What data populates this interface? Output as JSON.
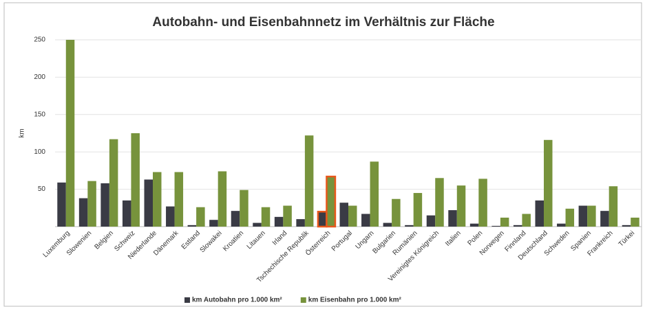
{
  "chart_data": {
    "type": "bar",
    "title": "Autobahn- und Eisenbahnnetz im Verhältnis zur Fläche",
    "y_label": "km",
    "categories": [
      "Luxemburg",
      "Slowenien",
      "Belgien",
      "Schweiz",
      "Niederlande",
      "Dänemark",
      "Estland",
      "Slowakei",
      "Kroatien",
      "Litauen",
      "Irland",
      "Tschechische Republik",
      "Österreich",
      "Portugal",
      "Ungarn",
      "Bulgarien",
      "Rumänien",
      "Vereinigtes Königreich",
      "Italien",
      "Polen",
      "Norwegen",
      "Finnland",
      "Deutschland",
      "Schweden",
      "Spanien",
      "Frankreich",
      "Türkei"
    ],
    "series": [
      {
        "name": "km Autobahn pro 1.000 km²",
        "color": "#3a3b45",
        "values": [
          59,
          38,
          58,
          35,
          63,
          27,
          2,
          9,
          21,
          5,
          13,
          10,
          20,
          32,
          17,
          5,
          2,
          15,
          22,
          4,
          1,
          2,
          35,
          4,
          28,
          21,
          2
        ]
      },
      {
        "name": "km Eisenbahn pro 1.000 km²",
        "color": "#77933c",
        "values": [
          250,
          61,
          117,
          125,
          73,
          73,
          26,
          74,
          49,
          26,
          28,
          122,
          67,
          28,
          87,
          37,
          45,
          65,
          55,
          64,
          12,
          17,
          116,
          24,
          28,
          54,
          12
        ]
      }
    ],
    "highlight_index": 12,
    "highlight_color": "#e8581c",
    "ylim": [
      0,
      250
    ],
    "yticks": [
      50,
      100,
      150,
      200,
      250
    ],
    "grid": true,
    "legend": "bottom"
  }
}
